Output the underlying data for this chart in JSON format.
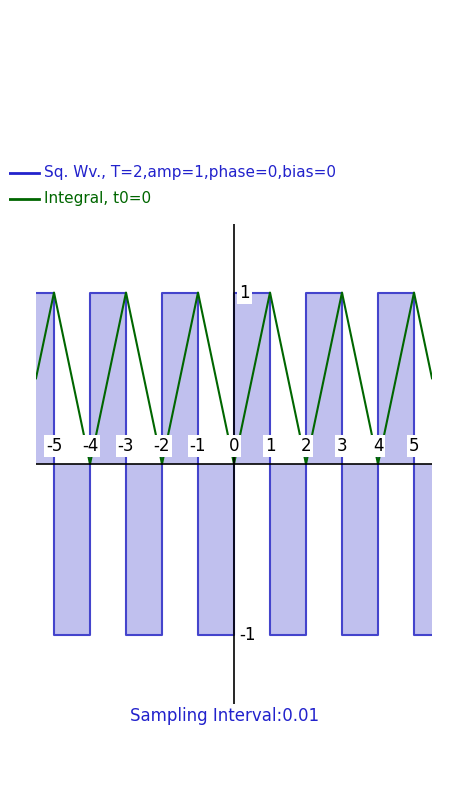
{
  "legend_sq": "Sq. Wv., T=2,amp=1,phase=0,bias=0",
  "legend_int": "Integral, t0=0",
  "sampling_label": "Sampling Interval:0.01",
  "sq_color": "#4444cc",
  "sq_fill_color": "#c0c0ee",
  "int_color": "#006600",
  "sampling_color": "#2222cc",
  "legend_sq_color": "#2222cc",
  "legend_int_color": "#006600",
  "bg_color": "#ffffff",
  "plot_bg": "#ffffff",
  "xlim": [
    -5.5,
    5.5
  ],
  "ylim": [
    -1.4,
    1.4
  ],
  "xticks": [
    -5,
    -4,
    -3,
    -2,
    -1,
    0,
    1,
    2,
    3,
    4,
    5
  ],
  "period": 2.0,
  "amplitude": 1.0,
  "t_start": -5.5,
  "t_end": 5.5,
  "dt": 0.005,
  "ui_blue": "#2196F3",
  "ui_magenta": "#E91E8C",
  "ui_dark": "#212121",
  "tab_underline": "#ffffff"
}
